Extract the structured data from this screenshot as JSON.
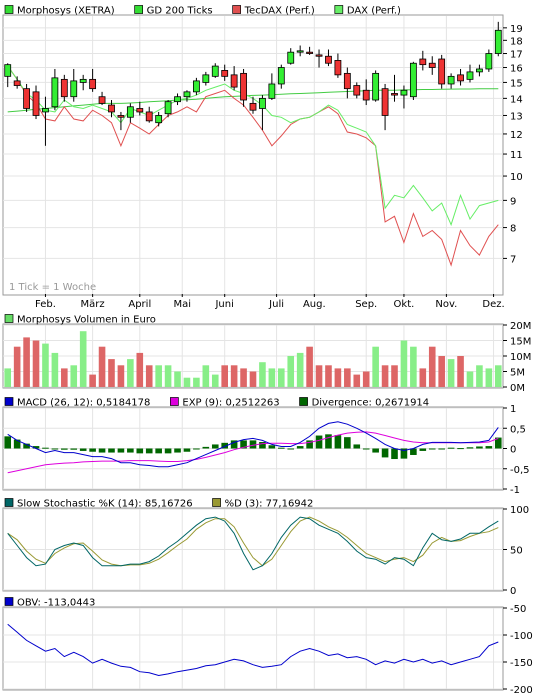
{
  "chart_data": [
    {
      "type": "line",
      "panel": "price",
      "legend": [
        {
          "label": "Morphosys (XETRA)",
          "color": "#33dd33"
        },
        {
          "label": "GD 200 Ticks",
          "color": "#33dd33"
        },
        {
          "label": "TecDAX (Perf.)",
          "color": "#e05050"
        },
        {
          "label": "DAX (Perf.)",
          "color": "#66ee66"
        }
      ],
      "note": "1 Tick = 1 Woche",
      "y_scale": "log",
      "ylim": [
        6.0,
        20.0
      ],
      "yticks": [
        7,
        8,
        9,
        10,
        11,
        12,
        13,
        14,
        15,
        16,
        17,
        18,
        19
      ],
      "x_labels": [
        "Feb.",
        "März",
        "April",
        "Mai",
        "Juni",
        "Juli",
        "Aug.",
        "Sep.",
        "Okt.",
        "Nov.",
        "Dez."
      ],
      "x_label_weeks": [
        4.5,
        9.5,
        14.5,
        19,
        23.5,
        29,
        33,
        38.5,
        42.5,
        47,
        52
      ],
      "candles": [
        {
          "o": 15.4,
          "h": 16.3,
          "l": 14.7,
          "c": 16.2
        },
        {
          "o": 15.1,
          "h": 15.4,
          "l": 14.6,
          "c": 14.8
        },
        {
          "o": 14.6,
          "h": 14.9,
          "l": 13.2,
          "c": 13.4
        },
        {
          "o": 14.4,
          "h": 14.8,
          "l": 12.8,
          "c": 13.0
        },
        {
          "o": 13.2,
          "h": 14.1,
          "l": 11.4,
          "c": 13.4
        },
        {
          "o": 13.5,
          "h": 15.9,
          "l": 13.3,
          "c": 15.3
        },
        {
          "o": 15.2,
          "h": 15.5,
          "l": 13.8,
          "c": 14.1
        },
        {
          "o": 14.1,
          "h": 15.9,
          "l": 13.8,
          "c": 15.1
        },
        {
          "o": 15.0,
          "h": 15.5,
          "l": 14.5,
          "c": 15.2
        },
        {
          "o": 15.2,
          "h": 15.9,
          "l": 14.4,
          "c": 14.6
        },
        {
          "o": 14.1,
          "h": 14.4,
          "l": 13.6,
          "c": 13.7
        },
        {
          "o": 13.6,
          "h": 13.9,
          "l": 12.9,
          "c": 13.2
        },
        {
          "o": 13.0,
          "h": 13.2,
          "l": 12.2,
          "c": 12.9
        },
        {
          "o": 12.9,
          "h": 13.7,
          "l": 12.6,
          "c": 13.5
        },
        {
          "o": 13.4,
          "h": 13.8,
          "l": 13.0,
          "c": 13.2
        },
        {
          "o": 13.2,
          "h": 13.5,
          "l": 12.6,
          "c": 12.7
        },
        {
          "o": 12.6,
          "h": 13.2,
          "l": 12.4,
          "c": 13.0
        },
        {
          "o": 13.1,
          "h": 13.9,
          "l": 12.9,
          "c": 13.8
        },
        {
          "o": 13.8,
          "h": 14.3,
          "l": 13.6,
          "c": 14.1
        },
        {
          "o": 14.1,
          "h": 14.5,
          "l": 13.8,
          "c": 14.4
        },
        {
          "o": 14.4,
          "h": 15.3,
          "l": 14.2,
          "c": 15.1
        },
        {
          "o": 15.0,
          "h": 15.7,
          "l": 14.8,
          "c": 15.5
        },
        {
          "o": 15.4,
          "h": 16.3,
          "l": 15.3,
          "c": 16.1
        },
        {
          "o": 15.8,
          "h": 16.2,
          "l": 15.1,
          "c": 15.4
        },
        {
          "o": 15.5,
          "h": 16.1,
          "l": 14.5,
          "c": 14.7
        },
        {
          "o": 15.6,
          "h": 15.9,
          "l": 13.5,
          "c": 13.9
        },
        {
          "o": 13.7,
          "h": 14.1,
          "l": 13.1,
          "c": 13.3
        },
        {
          "o": 13.4,
          "h": 14.2,
          "l": 12.2,
          "c": 14.0
        },
        {
          "o": 14.0,
          "h": 15.6,
          "l": 13.9,
          "c": 14.9
        },
        {
          "o": 14.9,
          "h": 16.2,
          "l": 14.6,
          "c": 16.0
        },
        {
          "o": 16.3,
          "h": 17.4,
          "l": 16.2,
          "c": 17.1
        },
        {
          "o": 17.1,
          "h": 17.6,
          "l": 16.8,
          "c": 17.2
        },
        {
          "o": 17.1,
          "h": 17.5,
          "l": 16.9,
          "c": 17.0
        },
        {
          "o": 16.9,
          "h": 17.3,
          "l": 16.0,
          "c": 16.8
        },
        {
          "o": 16.8,
          "h": 17.3,
          "l": 16.1,
          "c": 16.3
        },
        {
          "o": 16.5,
          "h": 17.0,
          "l": 15.3,
          "c": 15.5
        },
        {
          "o": 15.6,
          "h": 16.0,
          "l": 14.0,
          "c": 14.6
        },
        {
          "o": 14.8,
          "h": 15.0,
          "l": 14.0,
          "c": 14.2
        },
        {
          "o": 14.5,
          "h": 15.2,
          "l": 13.6,
          "c": 13.9
        },
        {
          "o": 13.9,
          "h": 15.8,
          "l": 13.8,
          "c": 15.6
        },
        {
          "o": 14.6,
          "h": 14.9,
          "l": 12.2,
          "c": 13.0
        },
        {
          "o": 14.3,
          "h": 15.5,
          "l": 13.8,
          "c": 14.2
        },
        {
          "o": 14.2,
          "h": 14.8,
          "l": 13.4,
          "c": 14.5
        },
        {
          "o": 14.1,
          "h": 16.4,
          "l": 13.9,
          "c": 16.3
        },
        {
          "o": 16.6,
          "h": 17.2,
          "l": 15.8,
          "c": 16.2
        },
        {
          "o": 16.3,
          "h": 16.8,
          "l": 15.5,
          "c": 16.0
        },
        {
          "o": 16.6,
          "h": 16.9,
          "l": 14.6,
          "c": 14.9
        },
        {
          "o": 14.9,
          "h": 15.6,
          "l": 14.6,
          "c": 15.4
        },
        {
          "o": 15.5,
          "h": 15.9,
          "l": 14.8,
          "c": 15.1
        },
        {
          "o": 15.2,
          "h": 16.2,
          "l": 15.0,
          "c": 15.7
        },
        {
          "o": 15.7,
          "h": 16.2,
          "l": 15.4,
          "c": 15.9
        },
        {
          "o": 15.9,
          "h": 17.3,
          "l": 15.7,
          "c": 17.0
        },
        {
          "o": 17.0,
          "h": 19.5,
          "l": 16.8,
          "c": 18.8
        }
      ],
      "series": [
        {
          "name": "GD 200 Ticks",
          "color": "#44cc44",
          "values": [
            13.2,
            13.25,
            13.3,
            13.35,
            13.4,
            13.45,
            13.5,
            13.55,
            13.6,
            13.65,
            13.7,
            13.7,
            13.7,
            13.72,
            13.75,
            13.8,
            13.82,
            13.85,
            13.9,
            13.92,
            13.95,
            14.0,
            14.05,
            14.1,
            14.12,
            14.15,
            14.18,
            14.2,
            14.22,
            14.25,
            14.28,
            14.3,
            14.32,
            14.35,
            14.38,
            14.4,
            14.42,
            14.45,
            14.47,
            14.5,
            14.5,
            14.5,
            14.52,
            14.53,
            14.55,
            14.55,
            14.56,
            14.57,
            14.58,
            14.58,
            14.59,
            14.6,
            14.6
          ]
        },
        {
          "name": "TecDAX (Perf.)",
          "color": "#e05050",
          "values": [
            16.1,
            15.2,
            14.2,
            13.7,
            12.8,
            12.7,
            13.5,
            12.8,
            12.7,
            13.3,
            13.0,
            12.6,
            11.4,
            12.6,
            12.3,
            12.0,
            12.5,
            13.0,
            13.2,
            13.5,
            13.2,
            14.1,
            14.3,
            14.5,
            14.0,
            13.6,
            12.9,
            12.2,
            11.4,
            11.9,
            12.5,
            12.8,
            12.9,
            13.2,
            13.5,
            13.1,
            12.1,
            12.0,
            11.8,
            11.4,
            8.2,
            8.4,
            7.5,
            8.5,
            7.7,
            7.9,
            7.6,
            6.8,
            7.9,
            7.4,
            7.1,
            7.7,
            8.1
          ]
        },
        {
          "name": "DAX (Perf.)",
          "color": "#66ee66",
          "values": [
            16.1,
            15.2,
            14.3,
            13.9,
            13.3,
            13.2,
            13.9,
            13.5,
            13.4,
            13.6,
            13.4,
            13.2,
            12.6,
            13.4,
            13.2,
            13.0,
            13.3,
            13.6,
            13.9,
            14.0,
            14.2,
            14.5,
            14.7,
            14.9,
            14.5,
            14.3,
            14.0,
            13.6,
            13.0,
            12.9,
            12.6,
            12.8,
            12.9,
            13.2,
            13.6,
            13.3,
            12.5,
            12.3,
            12.1,
            11.4,
            8.7,
            9.2,
            9.1,
            9.6,
            9.1,
            8.6,
            8.9,
            8.1,
            9.2,
            8.3,
            8.8,
            8.9,
            9.0
          ]
        }
      ]
    },
    {
      "type": "bar",
      "panel": "volume",
      "legend": [
        {
          "label": "Morphosys Volumen in Euro",
          "color": "#66dd66"
        }
      ],
      "yticks": [
        "0M",
        "5M",
        "10M",
        "15M",
        "20M"
      ],
      "ylim": [
        0,
        20
      ],
      "unit": "Mio. Euro",
      "values": [
        6.0,
        13.0,
        16.0,
        15.0,
        14.0,
        11.0,
        6.0,
        7.0,
        18.0,
        4.0,
        13.0,
        9.0,
        7.0,
        9.0,
        11.0,
        7.0,
        7.0,
        7.0,
        5.0,
        3.0,
        3.0,
        7.0,
        4.0,
        7.0,
        7.0,
        6.0,
        5.0,
        8.0,
        6.0,
        6.0,
        10.0,
        11.0,
        13.0,
        7.0,
        7.0,
        6.0,
        6.0,
        4.0,
        5.0,
        13.0,
        7.0,
        7.0,
        15.0,
        13.0,
        6.0,
        13.0,
        10.0,
        9.0,
        10.0,
        5.0,
        7.0,
        6.0,
        7.0
      ],
      "colors_up": "#88ee88",
      "colors_down": "#dd6666"
    },
    {
      "type": "line",
      "panel": "macd",
      "legend": [
        {
          "label": "MACD (26, 12): 0,5184178",
          "color": "#0000cc"
        },
        {
          "label": "EXP (9): 0,2512263",
          "color": "#dd00dd"
        },
        {
          "label": "Divergence: 0,2671914",
          "color": "#006600"
        }
      ],
      "ylim": [
        -1.0,
        1.0
      ],
      "yticks": [
        1,
        0.5,
        0,
        -0.5,
        -1
      ],
      "ytick_labels": [
        "1",
        "0,5",
        "0",
        "-0,5",
        "-1"
      ],
      "series": [
        {
          "name": "MACD (26, 12)",
          "color": "#0000cc",
          "values": [
            0.35,
            0.2,
            0.1,
            0.0,
            -0.1,
            -0.05,
            -0.1,
            -0.1,
            -0.15,
            -0.2,
            -0.2,
            -0.25,
            -0.35,
            -0.35,
            -0.4,
            -0.42,
            -0.45,
            -0.45,
            -0.4,
            -0.35,
            -0.25,
            -0.15,
            -0.05,
            0.05,
            0.15,
            0.22,
            0.25,
            0.2,
            0.1,
            0.05,
            0.05,
            0.15,
            0.3,
            0.5,
            0.62,
            0.66,
            0.6,
            0.5,
            0.38,
            0.25,
            0.1,
            0.0,
            -0.05,
            0.0,
            0.1,
            0.15,
            0.15,
            0.15,
            0.14,
            0.15,
            0.16,
            0.2,
            0.52
          ]
        },
        {
          "name": "EXP (9)",
          "color": "#dd00dd",
          "values": [
            -0.6,
            -0.55,
            -0.5,
            -0.45,
            -0.4,
            -0.38,
            -0.36,
            -0.35,
            -0.33,
            -0.32,
            -0.31,
            -0.31,
            -0.31,
            -0.3,
            -0.3,
            -0.3,
            -0.31,
            -0.32,
            -0.32,
            -0.3,
            -0.27,
            -0.22,
            -0.16,
            -0.1,
            -0.03,
            0.03,
            0.08,
            0.12,
            0.13,
            0.13,
            0.12,
            0.12,
            0.15,
            0.2,
            0.27,
            0.33,
            0.38,
            0.4,
            0.41,
            0.38,
            0.32,
            0.26,
            0.2,
            0.16,
            0.14,
            0.14,
            0.14,
            0.14,
            0.14,
            0.14,
            0.14,
            0.16,
            0.25
          ]
        },
        {
          "name": "Divergence",
          "color": "#006600",
          "type": "bar",
          "values": [
            0.3,
            0.22,
            0.12,
            0.06,
            0.02,
            -0.02,
            -0.03,
            -0.03,
            -0.06,
            -0.08,
            -0.1,
            -0.1,
            -0.1,
            -0.1,
            -0.12,
            -0.12,
            -0.12,
            -0.12,
            -0.1,
            -0.08,
            -0.02,
            0.04,
            0.1,
            0.14,
            0.2,
            0.2,
            0.2,
            0.16,
            0.08,
            0.02,
            0.0,
            0.06,
            0.2,
            0.32,
            0.35,
            0.33,
            0.28,
            0.1,
            0.0,
            -0.1,
            -0.22,
            -0.26,
            -0.25,
            -0.16,
            -0.06,
            -0.02,
            -0.01,
            0.02,
            0.01,
            0.03,
            0.05,
            0.06,
            0.27
          ]
        }
      ]
    },
    {
      "type": "line",
      "panel": "stochastic",
      "legend": [
        {
          "label": "Slow Stochastic %K (14): 85,16726",
          "color": "#006666"
        },
        {
          "label": "%D (3): 77,16942",
          "color": "#999933"
        }
      ],
      "ylim": [
        0,
        100
      ],
      "yticks": [
        0,
        50,
        100
      ],
      "series": [
        {
          "name": "Slow Stochastic %K (14)",
          "color": "#006666",
          "values": [
            70,
            55,
            40,
            30,
            32,
            50,
            55,
            58,
            55,
            40,
            30,
            30,
            30,
            32,
            32,
            35,
            42,
            52,
            60,
            70,
            80,
            88,
            90,
            85,
            70,
            45,
            25,
            30,
            45,
            65,
            80,
            90,
            88,
            80,
            75,
            70,
            60,
            48,
            40,
            38,
            32,
            40,
            38,
            30,
            52,
            70,
            62,
            60,
            63,
            70,
            70,
            78,
            85
          ]
        },
        {
          "name": "%D (3)",
          "color": "#999933",
          "values": [
            70,
            62,
            48,
            38,
            33,
            45,
            52,
            57,
            58,
            48,
            37,
            32,
            30,
            31,
            31,
            33,
            38,
            46,
            55,
            63,
            75,
            83,
            88,
            88,
            78,
            58,
            40,
            30,
            38,
            55,
            72,
            85,
            90,
            85,
            78,
            73,
            65,
            55,
            45,
            40,
            35,
            38,
            40,
            35,
            43,
            58,
            65,
            60,
            61,
            66,
            70,
            72,
            77
          ]
        }
      ]
    },
    {
      "type": "line",
      "panel": "obv",
      "legend": [
        {
          "label": "OBV: -113,0443",
          "color": "#0000cc"
        }
      ],
      "ylim": [
        -200,
        -50
      ],
      "yticks": [
        -50,
        -100,
        -150,
        -200
      ],
      "ytick_labels": [
        "-50",
        "-100",
        "-150",
        "-200"
      ],
      "series": [
        {
          "name": "OBV",
          "color": "#0000cc",
          "values": [
            -80,
            -95,
            -110,
            -120,
            -130,
            -125,
            -140,
            -132,
            -140,
            -152,
            -145,
            -152,
            -158,
            -160,
            -168,
            -170,
            -175,
            -172,
            -168,
            -165,
            -162,
            -157,
            -155,
            -150,
            -145,
            -148,
            -155,
            -160,
            -158,
            -155,
            -140,
            -130,
            -125,
            -130,
            -138,
            -135,
            -142,
            -140,
            -145,
            -155,
            -148,
            -152,
            -145,
            -150,
            -145,
            -152,
            -148,
            -155,
            -150,
            -145,
            -140,
            -120,
            -113
          ]
        }
      ]
    }
  ]
}
